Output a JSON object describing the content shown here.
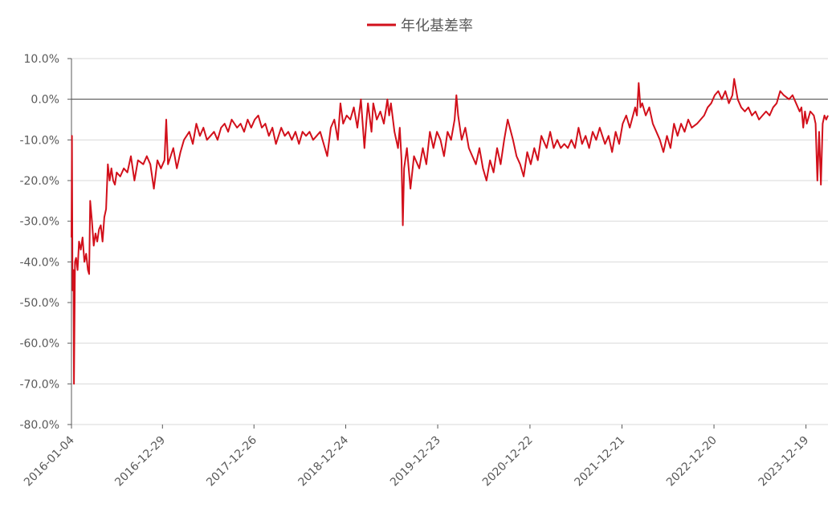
{
  "chart_data": {
    "type": "line",
    "title": "",
    "xlabel": "",
    "ylabel": "",
    "legend": {
      "position": "top-center",
      "entries": [
        "年化基差率"
      ]
    },
    "grid": {
      "horizontal": true,
      "vertical": false
    },
    "ylim": [
      -0.8,
      0.1
    ],
    "y_ticks": [
      0.1,
      0.0,
      -0.1,
      -0.2,
      -0.3,
      -0.4,
      -0.5,
      -0.6,
      -0.7,
      -0.8
    ],
    "y_tick_labels": [
      "10.0%",
      "0.0%",
      "-10.0%",
      "-20.0%",
      "-30.0%",
      "-40.0%",
      "-50.0%",
      "-60.0%",
      "-70.0%",
      "-80.0%"
    ],
    "xlim": [
      "2016-01-04",
      "2024-03-15"
    ],
    "x_ticks": [
      "2016-01-04",
      "2016-12-29",
      "2017-12-26",
      "2018-12-24",
      "2019-12-23",
      "2020-12-22",
      "2021-12-21",
      "2022-12-20",
      "2023-12-19"
    ],
    "colors": {
      "series": "#d2101b",
      "grid": "#d9d9d9",
      "axis": "#595959",
      "text": "#595959"
    },
    "series": [
      {
        "name": "年化基差率",
        "color": "#d2101b",
        "points": [
          [
            "2016-01-04",
            -0.34
          ],
          [
            "2016-01-06",
            -0.09
          ],
          [
            "2016-01-08",
            -0.47
          ],
          [
            "2016-01-12",
            -0.42
          ],
          [
            "2016-01-14",
            -0.7
          ],
          [
            "2016-01-18",
            -0.4
          ],
          [
            "2016-01-22",
            -0.39
          ],
          [
            "2016-01-28",
            -0.42
          ],
          [
            "2016-02-03",
            -0.35
          ],
          [
            "2016-02-10",
            -0.37
          ],
          [
            "2016-02-17",
            -0.34
          ],
          [
            "2016-02-24",
            -0.4
          ],
          [
            "2016-03-02",
            -0.38
          ],
          [
            "2016-03-09",
            -0.42
          ],
          [
            "2016-03-14",
            -0.43
          ],
          [
            "2016-03-18",
            -0.25
          ],
          [
            "2016-03-25",
            -0.3
          ],
          [
            "2016-04-01",
            -0.36
          ],
          [
            "2016-04-08",
            -0.33
          ],
          [
            "2016-04-15",
            -0.35
          ],
          [
            "2016-04-22",
            -0.32
          ],
          [
            "2016-04-29",
            -0.31
          ],
          [
            "2016-05-06",
            -0.35
          ],
          [
            "2016-05-13",
            -0.29
          ],
          [
            "2016-05-20",
            -0.27
          ],
          [
            "2016-05-27",
            -0.16
          ],
          [
            "2016-06-03",
            -0.2
          ],
          [
            "2016-06-10",
            -0.17
          ],
          [
            "2016-06-17",
            -0.2
          ],
          [
            "2016-06-24",
            -0.21
          ],
          [
            "2016-07-01",
            -0.18
          ],
          [
            "2016-07-15",
            -0.19
          ],
          [
            "2016-07-29",
            -0.17
          ],
          [
            "2016-08-12",
            -0.18
          ],
          [
            "2016-08-26",
            -0.14
          ],
          [
            "2016-09-09",
            -0.2
          ],
          [
            "2016-09-23",
            -0.15
          ],
          [
            "2016-10-14",
            -0.16
          ],
          [
            "2016-10-28",
            -0.14
          ],
          [
            "2016-11-11",
            -0.16
          ],
          [
            "2016-11-25",
            -0.22
          ],
          [
            "2016-12-09",
            -0.15
          ],
          [
            "2016-12-23",
            -0.17
          ],
          [
            "2017-01-06",
            -0.15
          ],
          [
            "2017-01-13",
            -0.05
          ],
          [
            "2017-01-20",
            -0.16
          ],
          [
            "2017-02-10",
            -0.12
          ],
          [
            "2017-02-24",
            -0.17
          ],
          [
            "2017-03-10",
            -0.13
          ],
          [
            "2017-03-24",
            -0.1
          ],
          [
            "2017-04-14",
            -0.08
          ],
          [
            "2017-04-28",
            -0.11
          ],
          [
            "2017-05-12",
            -0.06
          ],
          [
            "2017-05-26",
            -0.09
          ],
          [
            "2017-06-09",
            -0.07
          ],
          [
            "2017-06-23",
            -0.1
          ],
          [
            "2017-07-07",
            -0.09
          ],
          [
            "2017-07-21",
            -0.08
          ],
          [
            "2017-08-04",
            -0.1
          ],
          [
            "2017-08-18",
            -0.07
          ],
          [
            "2017-09-01",
            -0.06
          ],
          [
            "2017-09-15",
            -0.08
          ],
          [
            "2017-09-29",
            -0.05
          ],
          [
            "2017-10-20",
            -0.07
          ],
          [
            "2017-11-03",
            -0.06
          ],
          [
            "2017-11-17",
            -0.08
          ],
          [
            "2017-12-01",
            -0.05
          ],
          [
            "2017-12-15",
            -0.07
          ],
          [
            "2017-12-29",
            -0.05
          ],
          [
            "2018-01-12",
            -0.04
          ],
          [
            "2018-01-26",
            -0.07
          ],
          [
            "2018-02-09",
            -0.06
          ],
          [
            "2018-02-23",
            -0.09
          ],
          [
            "2018-03-09",
            -0.07
          ],
          [
            "2018-03-23",
            -0.11
          ],
          [
            "2018-04-13",
            -0.07
          ],
          [
            "2018-04-27",
            -0.09
          ],
          [
            "2018-05-11",
            -0.08
          ],
          [
            "2018-05-25",
            -0.1
          ],
          [
            "2018-06-08",
            -0.08
          ],
          [
            "2018-06-22",
            -0.11
          ],
          [
            "2018-07-06",
            -0.08
          ],
          [
            "2018-07-20",
            -0.09
          ],
          [
            "2018-08-03",
            -0.08
          ],
          [
            "2018-08-17",
            -0.1
          ],
          [
            "2018-08-31",
            -0.09
          ],
          [
            "2018-09-14",
            -0.08
          ],
          [
            "2018-09-28",
            -0.11
          ],
          [
            "2018-10-12",
            -0.14
          ],
          [
            "2018-10-26",
            -0.07
          ],
          [
            "2018-11-09",
            -0.05
          ],
          [
            "2018-11-23",
            -0.1
          ],
          [
            "2018-12-03",
            -0.01
          ],
          [
            "2018-12-14",
            -0.06
          ],
          [
            "2018-12-28",
            -0.04
          ],
          [
            "2019-01-11",
            -0.05
          ],
          [
            "2019-01-25",
            -0.02
          ],
          [
            "2019-02-08",
            -0.07
          ],
          [
            "2019-02-22",
            0.0
          ],
          [
            "2019-03-08",
            -0.12
          ],
          [
            "2019-03-15",
            -0.06
          ],
          [
            "2019-03-22",
            -0.01
          ],
          [
            "2019-04-05",
            -0.08
          ],
          [
            "2019-04-12",
            -0.01
          ],
          [
            "2019-04-26",
            -0.05
          ],
          [
            "2019-05-10",
            -0.03
          ],
          [
            "2019-05-24",
            -0.06
          ],
          [
            "2019-06-07",
            0.0
          ],
          [
            "2019-06-14",
            -0.04
          ],
          [
            "2019-06-21",
            -0.01
          ],
          [
            "2019-07-05",
            -0.08
          ],
          [
            "2019-07-19",
            -0.12
          ],
          [
            "2019-07-26",
            -0.07
          ],
          [
            "2019-08-02",
            -0.15
          ],
          [
            "2019-08-07",
            -0.31
          ],
          [
            "2019-08-12",
            -0.17
          ],
          [
            "2019-08-23",
            -0.12
          ],
          [
            "2019-09-06",
            -0.22
          ],
          [
            "2019-09-20",
            -0.14
          ],
          [
            "2019-10-11",
            -0.17
          ],
          [
            "2019-10-25",
            -0.12
          ],
          [
            "2019-11-08",
            -0.16
          ],
          [
            "2019-11-22",
            -0.08
          ],
          [
            "2019-12-06",
            -0.12
          ],
          [
            "2019-12-20",
            -0.08
          ],
          [
            "2020-01-03",
            -0.1
          ],
          [
            "2020-01-17",
            -0.14
          ],
          [
            "2020-01-31",
            -0.08
          ],
          [
            "2020-02-14",
            -0.1
          ],
          [
            "2020-02-28",
            -0.05
          ],
          [
            "2020-03-06",
            0.01
          ],
          [
            "2020-03-13",
            -0.04
          ],
          [
            "2020-03-27",
            -0.1
          ],
          [
            "2020-04-10",
            -0.07
          ],
          [
            "2020-04-24",
            -0.12
          ],
          [
            "2020-05-08",
            -0.14
          ],
          [
            "2020-05-22",
            -0.16
          ],
          [
            "2020-06-05",
            -0.12
          ],
          [
            "2020-06-19",
            -0.17
          ],
          [
            "2020-07-03",
            -0.2
          ],
          [
            "2020-07-17",
            -0.15
          ],
          [
            "2020-07-31",
            -0.18
          ],
          [
            "2020-08-14",
            -0.12
          ],
          [
            "2020-08-28",
            -0.16
          ],
          [
            "2020-09-11",
            -0.1
          ],
          [
            "2020-09-25",
            -0.05
          ],
          [
            "2020-10-16",
            -0.1
          ],
          [
            "2020-10-30",
            -0.14
          ],
          [
            "2020-11-13",
            -0.16
          ],
          [
            "2020-11-27",
            -0.19
          ],
          [
            "2020-12-11",
            -0.13
          ],
          [
            "2020-12-25",
            -0.16
          ],
          [
            "2021-01-08",
            -0.12
          ],
          [
            "2021-01-22",
            -0.15
          ],
          [
            "2021-02-05",
            -0.09
          ],
          [
            "2021-02-26",
            -0.12
          ],
          [
            "2021-03-12",
            -0.08
          ],
          [
            "2021-03-26",
            -0.12
          ],
          [
            "2021-04-09",
            -0.1
          ],
          [
            "2021-04-23",
            -0.12
          ],
          [
            "2021-05-07",
            -0.11
          ],
          [
            "2021-05-21",
            -0.12
          ],
          [
            "2021-06-04",
            -0.1
          ],
          [
            "2021-06-18",
            -0.12
          ],
          [
            "2021-07-02",
            -0.07
          ],
          [
            "2021-07-16",
            -0.11
          ],
          [
            "2021-07-30",
            -0.09
          ],
          [
            "2021-08-13",
            -0.12
          ],
          [
            "2021-08-27",
            -0.08
          ],
          [
            "2021-09-10",
            -0.1
          ],
          [
            "2021-09-24",
            -0.07
          ],
          [
            "2021-10-15",
            -0.11
          ],
          [
            "2021-10-29",
            -0.09
          ],
          [
            "2021-11-12",
            -0.13
          ],
          [
            "2021-11-26",
            -0.08
          ],
          [
            "2021-12-10",
            -0.11
          ],
          [
            "2021-12-24",
            -0.06
          ],
          [
            "2022-01-07",
            -0.04
          ],
          [
            "2022-01-21",
            -0.07
          ],
          [
            "2022-02-11",
            -0.02
          ],
          [
            "2022-02-18",
            -0.04
          ],
          [
            "2022-02-25",
            0.04
          ],
          [
            "2022-03-04",
            -0.02
          ],
          [
            "2022-03-11",
            -0.01
          ],
          [
            "2022-03-25",
            -0.04
          ],
          [
            "2022-04-08",
            -0.02
          ],
          [
            "2022-04-22",
            -0.06
          ],
          [
            "2022-05-06",
            -0.08
          ],
          [
            "2022-05-20",
            -0.1
          ],
          [
            "2022-06-03",
            -0.13
          ],
          [
            "2022-06-17",
            -0.09
          ],
          [
            "2022-07-01",
            -0.12
          ],
          [
            "2022-07-15",
            -0.06
          ],
          [
            "2022-07-29",
            -0.09
          ],
          [
            "2022-08-12",
            -0.06
          ],
          [
            "2022-08-26",
            -0.08
          ],
          [
            "2022-09-09",
            -0.05
          ],
          [
            "2022-09-23",
            -0.07
          ],
          [
            "2022-10-14",
            -0.06
          ],
          [
            "2022-10-28",
            -0.05
          ],
          [
            "2022-11-11",
            -0.04
          ],
          [
            "2022-11-25",
            -0.02
          ],
          [
            "2022-12-09",
            -0.01
          ],
          [
            "2022-12-23",
            0.01
          ],
          [
            "2023-01-06",
            0.02
          ],
          [
            "2023-01-20",
            0.0
          ],
          [
            "2023-02-03",
            0.02
          ],
          [
            "2023-02-17",
            -0.01
          ],
          [
            "2023-03-03",
            0.01
          ],
          [
            "2023-03-10",
            0.05
          ],
          [
            "2023-03-24",
            0.0
          ],
          [
            "2023-04-07",
            -0.02
          ],
          [
            "2023-04-21",
            -0.03
          ],
          [
            "2023-05-05",
            -0.02
          ],
          [
            "2023-05-19",
            -0.04
          ],
          [
            "2023-06-02",
            -0.03
          ],
          [
            "2023-06-16",
            -0.05
          ],
          [
            "2023-06-30",
            -0.04
          ],
          [
            "2023-07-14",
            -0.03
          ],
          [
            "2023-07-28",
            -0.04
          ],
          [
            "2023-08-11",
            -0.02
          ],
          [
            "2023-08-25",
            -0.01
          ],
          [
            "2023-09-08",
            0.02
          ],
          [
            "2023-09-22",
            0.01
          ],
          [
            "2023-10-13",
            0.0
          ],
          [
            "2023-10-27",
            0.01
          ],
          [
            "2023-11-10",
            -0.01
          ],
          [
            "2023-11-24",
            -0.03
          ],
          [
            "2023-12-01",
            -0.02
          ],
          [
            "2023-12-08",
            -0.07
          ],
          [
            "2023-12-15",
            -0.03
          ],
          [
            "2023-12-22",
            -0.06
          ],
          [
            "2024-01-05",
            -0.03
          ],
          [
            "2024-01-19",
            -0.04
          ],
          [
            "2024-01-26",
            -0.06
          ],
          [
            "2024-02-02",
            -0.2
          ],
          [
            "2024-02-09",
            -0.08
          ],
          [
            "2024-02-16",
            -0.21
          ],
          [
            "2024-02-23",
            -0.06
          ],
          [
            "2024-03-01",
            -0.04
          ],
          [
            "2024-03-08",
            -0.05
          ],
          [
            "2024-03-15",
            -0.04
          ]
        ]
      }
    ]
  }
}
